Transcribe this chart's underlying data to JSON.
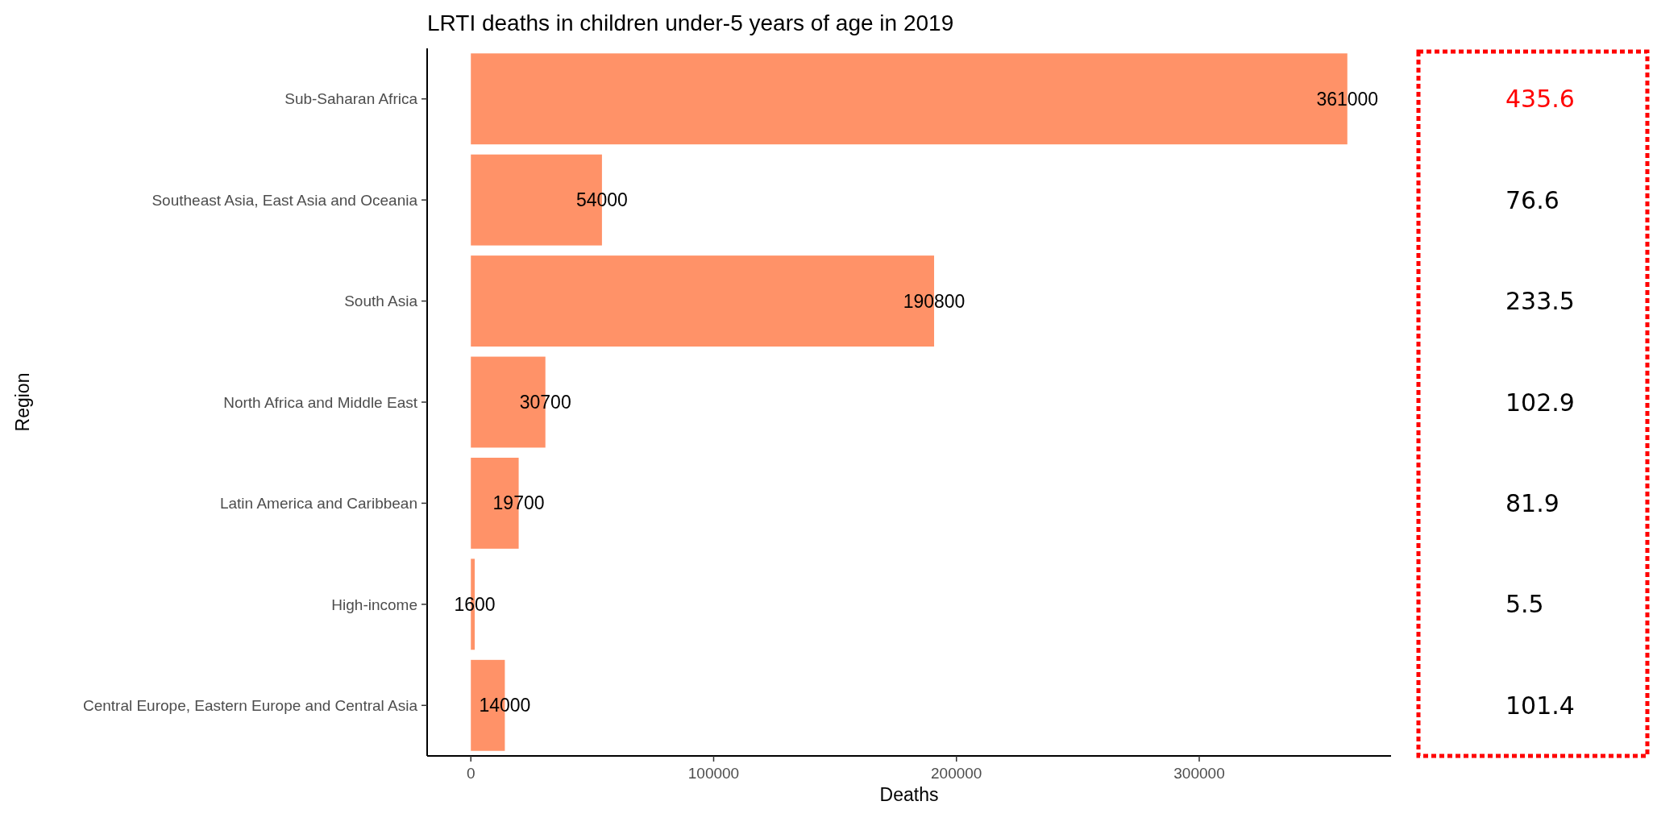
{
  "chart_data": {
    "type": "bar",
    "orientation": "horizontal",
    "title": "LRTI deaths in children under-5 years of age in 2019",
    "xlabel": "Deaths",
    "ylabel": "Region",
    "categories": [
      "Sub-Saharan Africa",
      "Southeast Asia, East Asia and Oceania",
      "South Asia",
      "North Africa and Middle East",
      "Latin America and Caribbean",
      "High-income",
      "Central Europe, Eastern Europe and Central Asia"
    ],
    "values": [
      361000,
      54000,
      190800,
      30700,
      19700,
      1600,
      14000
    ],
    "color": "#ff9268",
    "data_labels": true,
    "xlim": [
      -18000,
      379000
    ],
    "xticks": [
      0,
      100000,
      200000,
      300000
    ],
    "grid": false,
    "annotations": [
      "435.6",
      "76.6",
      "233.5",
      "102.9",
      "81.9",
      "5.5",
      "101.4"
    ]
  }
}
